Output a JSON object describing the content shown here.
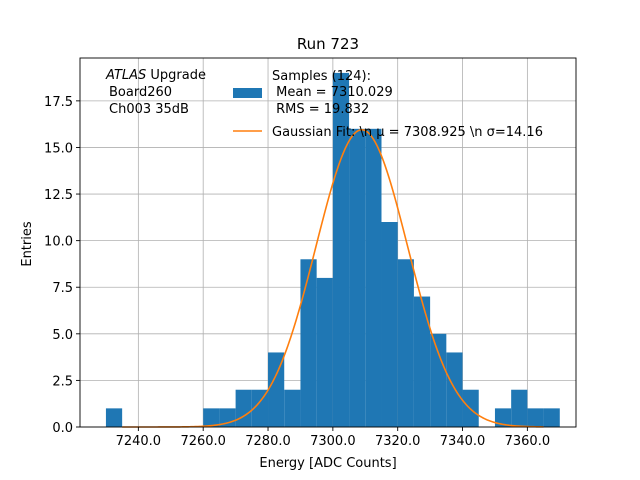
{
  "chart_data": {
    "type": "bar",
    "title": "Run 723",
    "xlabel": "Energy [ADC Counts]",
    "ylabel": "Entries",
    "xlim": [
      7222,
      7375
    ],
    "ylim": [
      0,
      19.8
    ],
    "grid": true,
    "x_ticks": [
      7240,
      7260,
      7280,
      7300,
      7320,
      7340,
      7360
    ],
    "x_tick_labels": [
      "7240.0",
      "7260.0",
      "7280.0",
      "7300.0",
      "7320.0",
      "7340.0",
      "7360.0"
    ],
    "y_ticks": [
      0,
      2.5,
      5,
      7.5,
      10,
      12.5,
      15,
      17.5
    ],
    "y_tick_labels": [
      "0.0",
      "2.5",
      "5.0",
      "7.5",
      "10.0",
      "12.5",
      "15.0",
      "17.5"
    ],
    "bar_color": "#1f77b4",
    "fit_color": "#ff7f0e",
    "annotation": {
      "italic": "ATLAS",
      "line1_rest": " Upgrade",
      "line2": "Board260",
      "line3": "Ch003 35dB"
    },
    "legend": {
      "position": "top-right",
      "hist_label_lines": [
        "Samples (124):",
        " Mean = 7310.029",
        " RMS = 19.832"
      ],
      "fit_label": "Gaussian Fit: \\n μ = 7308.925 \\n σ=14.16"
    },
    "bins": [
      {
        "x0": 7230,
        "x1": 7235,
        "count": 1
      },
      {
        "x0": 7260,
        "x1": 7265,
        "count": 1
      },
      {
        "x0": 7265,
        "x1": 7270,
        "count": 1
      },
      {
        "x0": 7270,
        "x1": 7275,
        "count": 2
      },
      {
        "x0": 7275,
        "x1": 7280,
        "count": 2
      },
      {
        "x0": 7280,
        "x1": 7285,
        "count": 4
      },
      {
        "x0": 7285,
        "x1": 7290,
        "count": 2
      },
      {
        "x0": 7290,
        "x1": 7295,
        "count": 9
      },
      {
        "x0": 7295,
        "x1": 7300,
        "count": 8
      },
      {
        "x0": 7300,
        "x1": 7305,
        "count": 19
      },
      {
        "x0": 7305,
        "x1": 7310,
        "count": 16
      },
      {
        "x0": 7310,
        "x1": 7315,
        "count": 16
      },
      {
        "x0": 7315,
        "x1": 7320,
        "count": 11
      },
      {
        "x0": 7320,
        "x1": 7325,
        "count": 9
      },
      {
        "x0": 7325,
        "x1": 7330,
        "count": 7
      },
      {
        "x0": 7330,
        "x1": 7335,
        "count": 5
      },
      {
        "x0": 7335,
        "x1": 7340,
        "count": 4
      },
      {
        "x0": 7340,
        "x1": 7345,
        "count": 2
      },
      {
        "x0": 7350,
        "x1": 7355,
        "count": 1
      },
      {
        "x0": 7355,
        "x1": 7360,
        "count": 2
      },
      {
        "x0": 7360,
        "x1": 7365,
        "count": 1
      },
      {
        "x0": 7365,
        "x1": 7370,
        "count": 1
      }
    ],
    "fit": {
      "mu": 7308.925,
      "sigma": 14.16,
      "amplitude": 15.95,
      "x_range": [
        7235,
        7365
      ]
    }
  }
}
